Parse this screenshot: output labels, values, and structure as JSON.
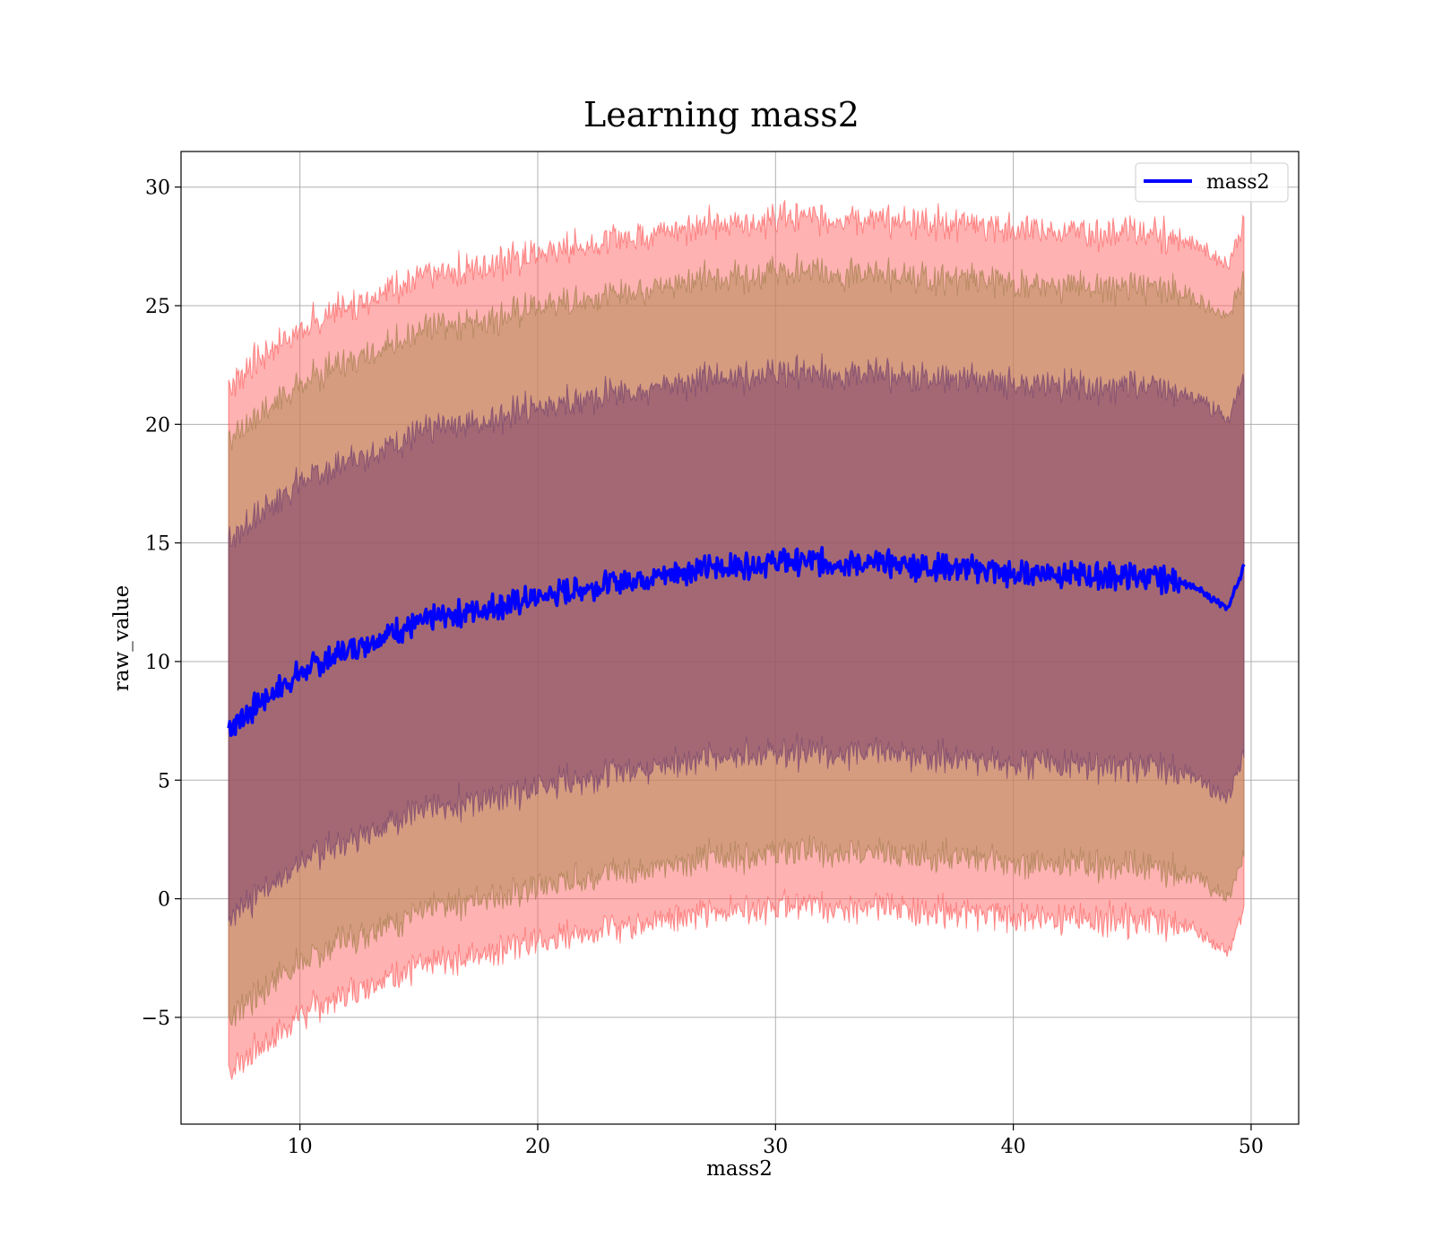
{
  "chart_data": {
    "type": "line",
    "title": "Learning mass2",
    "xlabel": "mass2",
    "ylabel": "raw_value",
    "xlim": [
      5,
      52
    ],
    "ylim": [
      -9.5,
      31.5
    ],
    "xticks": [
      10,
      20,
      30,
      40,
      50
    ],
    "xtick_labels": [
      "10",
      "20",
      "30",
      "40",
      "50"
    ],
    "yticks": [
      -5,
      0,
      5,
      10,
      15,
      20,
      25,
      30
    ],
    "ytick_labels": [
      "−5",
      "0",
      "5",
      "10",
      "15",
      "20",
      "25",
      "30"
    ],
    "grid": true,
    "legend_position": "upper right",
    "series": [
      {
        "name": "mass2",
        "color": "#0000ff",
        "x": [
          7,
          8,
          9,
          10,
          11,
          12,
          13,
          14,
          15,
          16,
          17,
          18,
          19,
          20,
          21,
          22,
          23,
          24,
          25,
          26,
          27,
          28,
          29,
          30,
          31,
          32,
          33,
          34,
          35,
          36,
          37,
          38,
          39,
          40,
          41,
          42,
          43,
          44,
          45,
          46,
          47,
          48,
          49,
          49.7
        ],
        "y": [
          7.2,
          8.0,
          8.8,
          9.5,
          10.0,
          10.5,
          10.9,
          11.3,
          11.6,
          11.9,
          12.1,
          12.3,
          12.5,
          12.7,
          12.9,
          13.1,
          13.3,
          13.5,
          13.6,
          13.8,
          13.9,
          14.0,
          14.1,
          14.2,
          14.2,
          14.2,
          14.2,
          14.1,
          14.1,
          14.0,
          14.0,
          13.9,
          13.9,
          13.6,
          13.8,
          13.7,
          13.6,
          13.6,
          13.6,
          13.5,
          13.4,
          12.9,
          12.2,
          14.0
        ]
      }
    ],
    "bands": [
      {
        "width": 14.5,
        "color": "#ff6666",
        "opacity": 0.5,
        "edge_color": "#ff4d4d"
      },
      {
        "width": 12.2,
        "color": "#b58a55",
        "opacity": 0.55,
        "edge_color": "#9a7a44"
      },
      {
        "width": 8.0,
        "color": "#7a3e6a",
        "opacity": 0.55,
        "edge_color": "#6b3a70"
      }
    ]
  }
}
